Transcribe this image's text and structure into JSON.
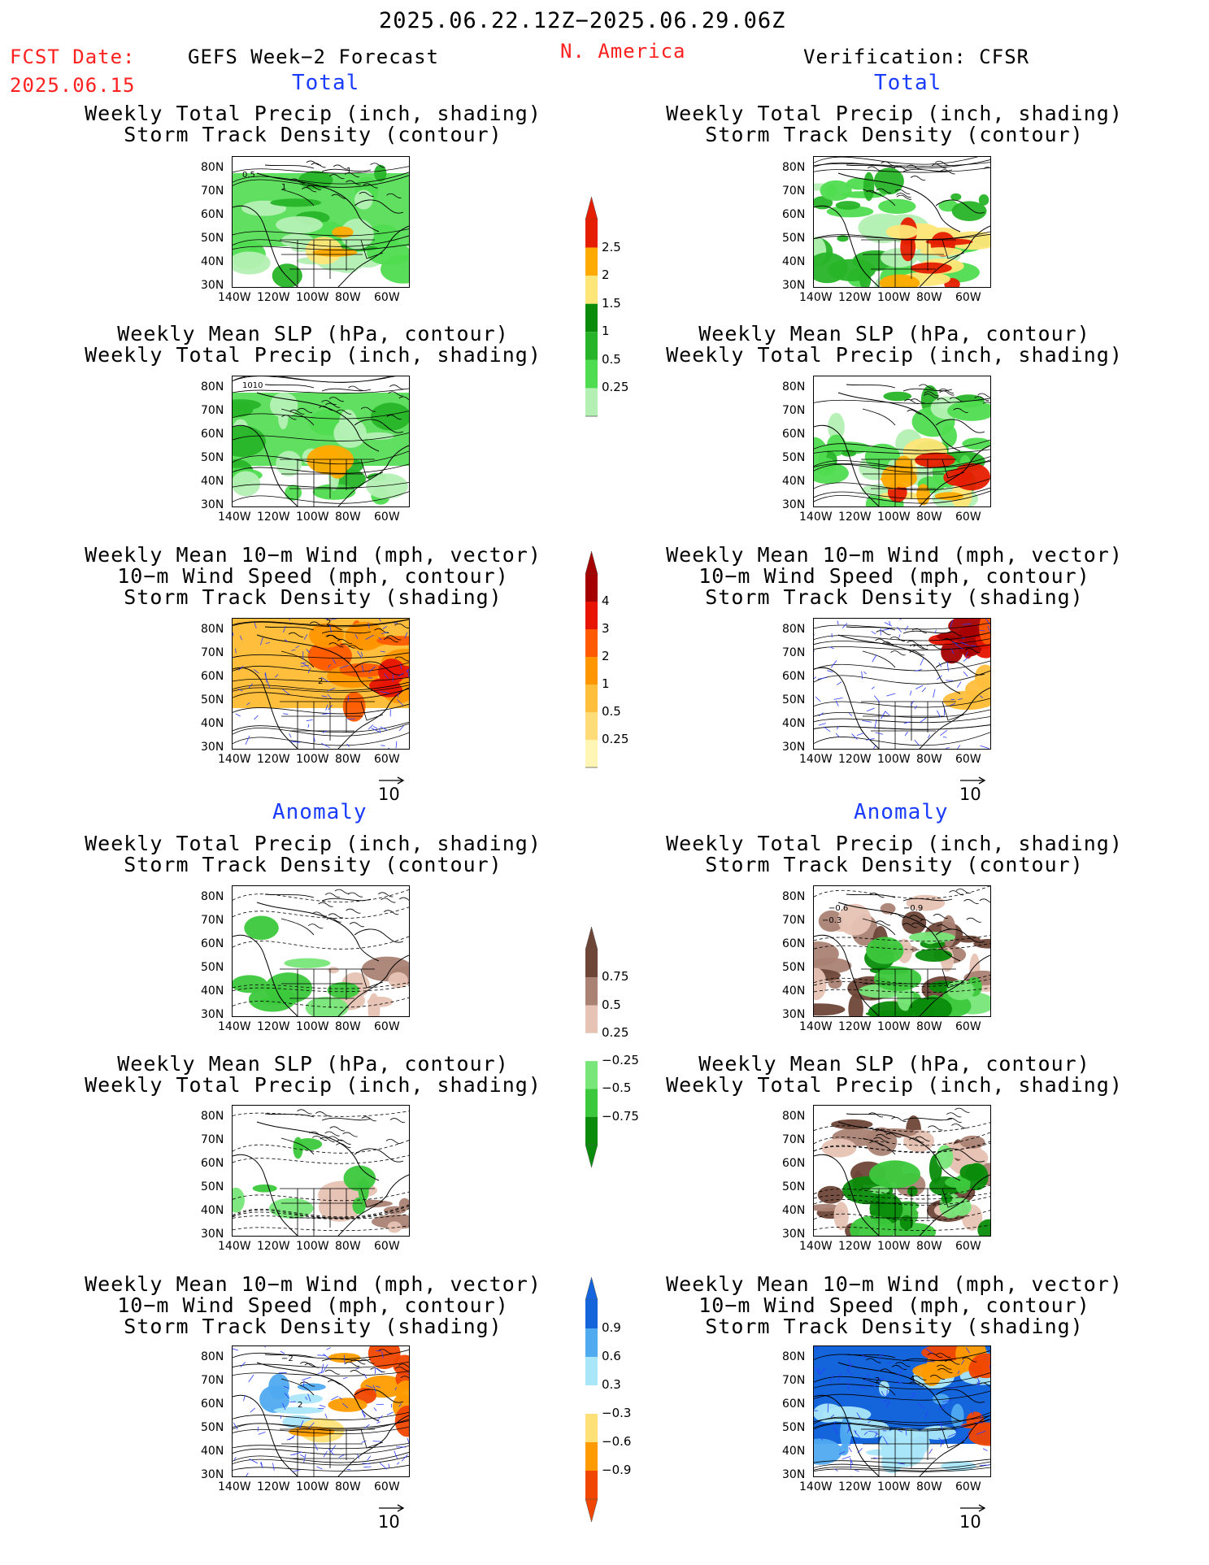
{
  "header": {
    "period": "2025.06.22.12Z−2025.06.29.06Z",
    "fcst_label": "FCST Date:",
    "fcst_date": "2025.06.15",
    "left_title": "GEFS Week−2 Forecast",
    "region": "N. America",
    "right_title": "Verification: CFSR"
  },
  "sections": {
    "total_left": "Total",
    "total_right": "Total",
    "anomaly_left": "Anomaly",
    "anomaly_right": "Anomaly"
  },
  "titles": {
    "precip_track": [
      "Weekly Total Precip (inch, shading)",
      "Storm Track Density (contour)"
    ],
    "slp_precip": [
      "Weekly Mean SLP (hPa, contour)",
      "Weekly Total Precip (inch, shading)"
    ],
    "wind_track": [
      "Weekly Mean 10−m Wind (mph, vector)",
      "10−m Wind Speed (mph, contour)",
      "Storm Track Density (shading)"
    ]
  },
  "axes": {
    "lat_labels": [
      "80N",
      "70N",
      "60N",
      "50N",
      "40N",
      "30N"
    ],
    "lon_labels": [
      "140W",
      "120W",
      "100W",
      "80W",
      "60W"
    ]
  },
  "contour_labels": {
    "fcst_precip": [
      "0.5",
      "1",
      "1"
    ],
    "fcst_slp": [
      "1010"
    ],
    "fcst_wind": [
      "2",
      "2"
    ],
    "cfsr_precip_anom": [
      "−0.6",
      "−0.9",
      "−0.3"
    ],
    "fcst_wind_anom": [
      "−2",
      "2"
    ],
    "cfsr_wind_anom": [
      "2",
      "4"
    ]
  },
  "vector_reference": "10",
  "colorbars": {
    "precip_total": {
      "labels": [
        "0.25",
        "0.5",
        "1",
        "1.5",
        "2",
        "2.5"
      ],
      "colors": [
        "#b4f0b4",
        "#50dc50",
        "#28b428",
        "#0a8c0a",
        "#ffe678",
        "#ffaa00",
        "#e61e00"
      ]
    },
    "track_total": {
      "labels": [
        "0.25",
        "0.5",
        "1",
        "2",
        "3",
        "4"
      ],
      "colors": [
        "#fff5b4",
        "#ffdc78",
        "#ffbe3c",
        "#ff9600",
        "#ff5a00",
        "#e61400",
        "#a50000"
      ]
    },
    "precip_anom": {
      "labels": [
        "0.75",
        "0.5",
        "0.25",
        "−0.25",
        "−0.5",
        "−0.75"
      ],
      "colors": [
        "#0a8c0a",
        "#3cc83c",
        "#78e678",
        "#ffffff",
        "#e6c3b4",
        "#aa8273",
        "#6e4637"
      ]
    },
    "track_anom": {
      "labels": [
        "0.9",
        "0.6",
        "0.3",
        "−0.3",
        "−0.6",
        "−0.9"
      ],
      "colors": [
        "#f04600",
        "#ff9b00",
        "#ffe178",
        "#ffffff",
        "#aae6fa",
        "#50aaf0",
        "#1464dc"
      ]
    }
  }
}
